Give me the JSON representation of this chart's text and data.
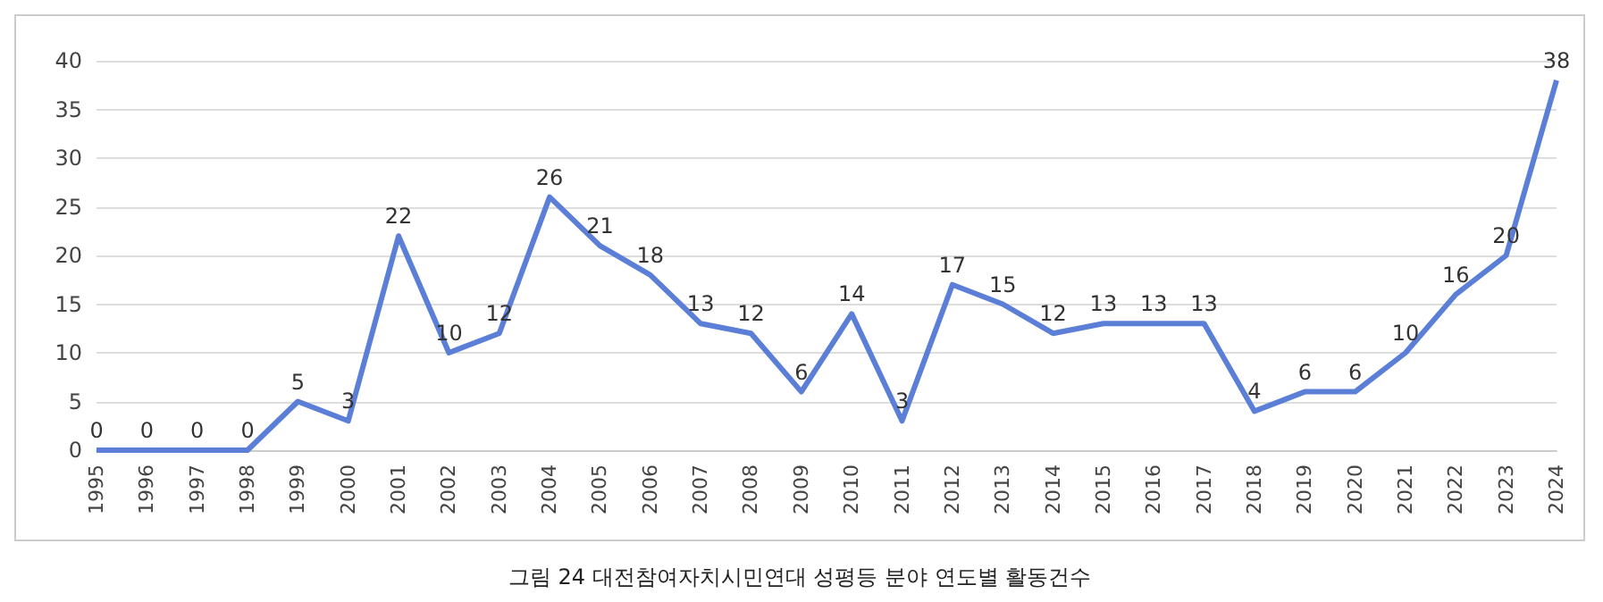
{
  "chart_data": {
    "type": "line",
    "title": "그림 24 대전참여자치시민연대 성평등 분야 연도별 활동건수",
    "categories": [
      "1995",
      "1996",
      "1997",
      "1998",
      "1999",
      "2000",
      "2001",
      "2002",
      "2003",
      "2004",
      "2005",
      "2006",
      "2007",
      "2008",
      "2009",
      "2010",
      "2011",
      "2012",
      "2013",
      "2014",
      "2015",
      "2016",
      "2017",
      "2018",
      "2019",
      "2020",
      "2021",
      "2022",
      "2023",
      "2024"
    ],
    "series": [
      {
        "color": "#5b7fd6",
        "values": [
          0,
          0,
          0,
          0,
          5,
          3,
          22,
          10,
          12,
          26,
          21,
          18,
          13,
          12,
          6,
          14,
          3,
          17,
          15,
          12,
          13,
          13,
          13,
          4,
          6,
          6,
          10,
          16,
          20,
          38
        ]
      }
    ],
    "ylim": [
      0,
      40
    ],
    "yticks": [
      0,
      5,
      10,
      15,
      20,
      25,
      30,
      35,
      40
    ],
    "grid": "y",
    "marker": "none",
    "line_style": "solid",
    "data_labels": true
  }
}
